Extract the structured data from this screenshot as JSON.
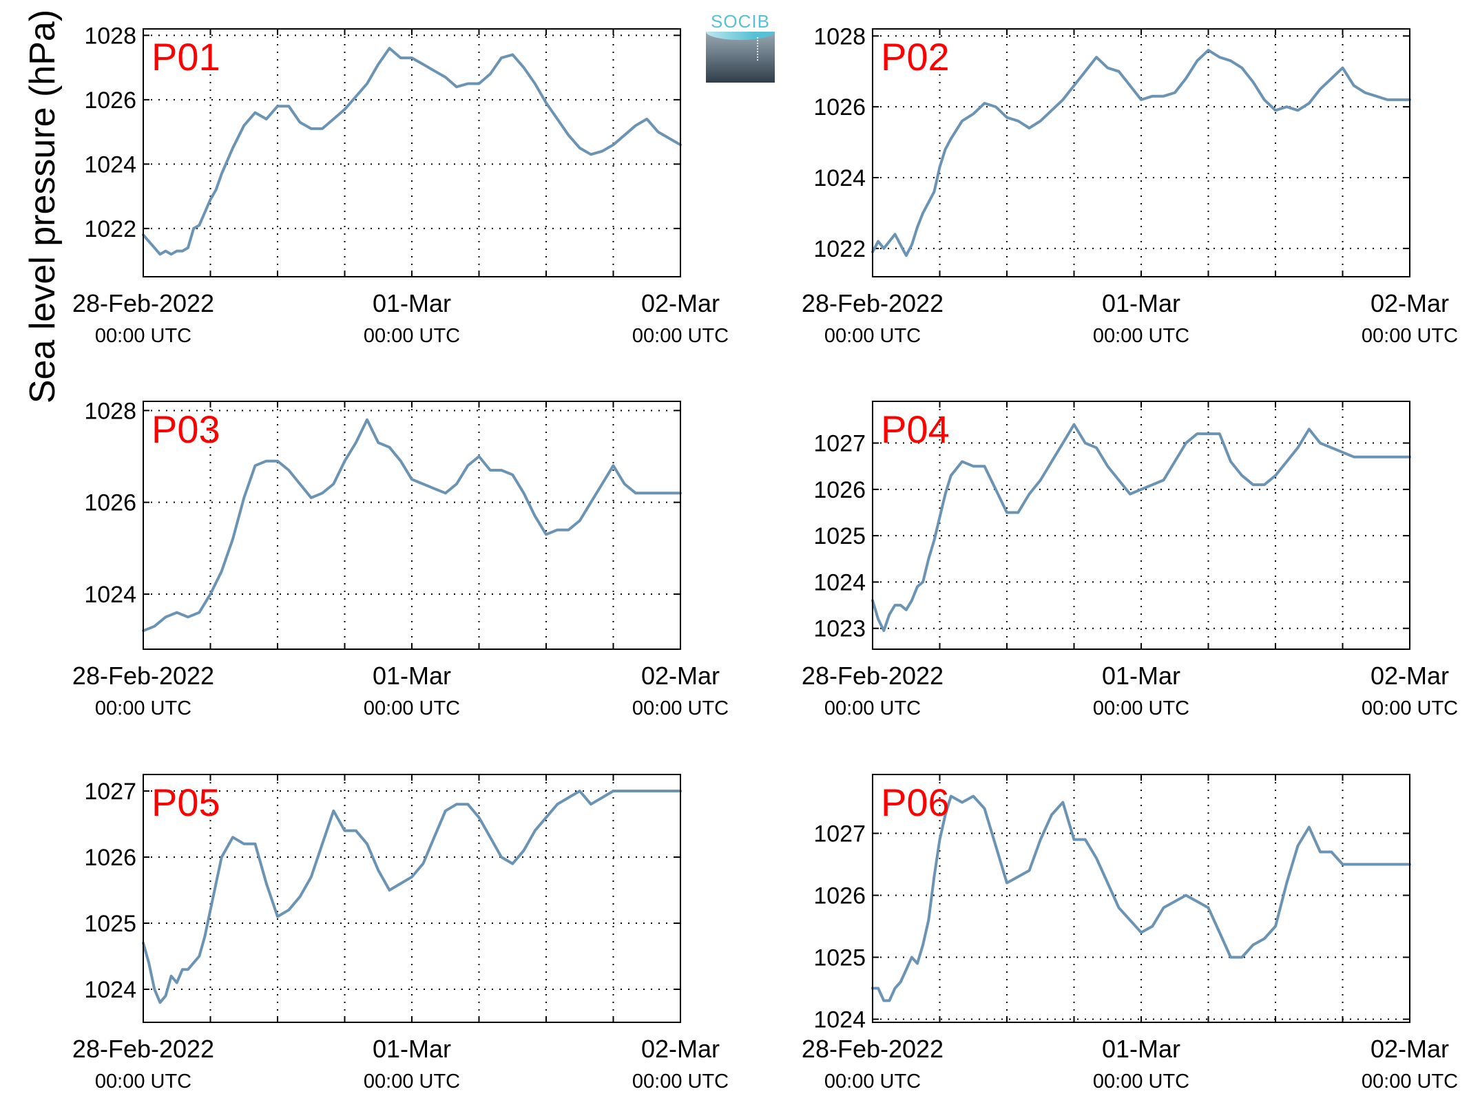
{
  "logo": {
    "text": "SOCIB"
  },
  "figure": {
    "ylabel": "Sea level pressure (hPa)"
  },
  "chart_data": [
    {
      "type": "line",
      "title": "P01",
      "color": "#6b93b3",
      "xlim": [
        "28-Feb-2022 00:00",
        "02-Mar-2022 00:00"
      ],
      "xticks": [
        {
          "label": "28-Feb-2022",
          "sub": "00:00 UTC",
          "h": 0
        },
        {
          "label": "01-Mar",
          "sub": "00:00 UTC",
          "h": 24
        },
        {
          "label": "02-Mar",
          "sub": "00:00 UTC",
          "h": 48
        }
      ],
      "ylim": [
        1020.5,
        1028.2
      ],
      "yticks": [
        1022,
        1024,
        1026,
        1028
      ],
      "x_hours": [
        0,
        0.5,
        1,
        1.5,
        2,
        2.5,
        3,
        3.5,
        4,
        4.5,
        5,
        5.5,
        6,
        6.5,
        7,
        8,
        9,
        10,
        11,
        12,
        13,
        14,
        15,
        16,
        17,
        18,
        19,
        20,
        21,
        22,
        23,
        24,
        25,
        26,
        27,
        28,
        29,
        30,
        31,
        32,
        33,
        34,
        35,
        36,
        37,
        38,
        39,
        40,
        41,
        42,
        43,
        44,
        45,
        46,
        47,
        48
      ],
      "y": [
        1021.8,
        1021.6,
        1021.4,
        1021.2,
        1021.3,
        1021.2,
        1021.3,
        1021.3,
        1021.4,
        1022.0,
        1022.1,
        1022.5,
        1022.9,
        1023.2,
        1023.7,
        1024.5,
        1025.2,
        1025.6,
        1025.4,
        1025.8,
        1025.8,
        1025.3,
        1025.1,
        1025.1,
        1025.4,
        1025.7,
        1026.1,
        1026.5,
        1027.1,
        1027.6,
        1027.3,
        1027.3,
        1027.1,
        1026.9,
        1026.7,
        1026.4,
        1026.5,
        1026.5,
        1026.8,
        1027.3,
        1027.4,
        1027.0,
        1026.5,
        1025.9,
        1025.4,
        1024.9,
        1024.5,
        1024.3,
        1024.4,
        1024.6,
        1024.9,
        1025.2,
        1025.4,
        1025.0,
        1024.8,
        1024.6
      ]
    },
    {
      "type": "line",
      "title": "P02",
      "color": "#6b93b3",
      "xlim": [
        "28-Feb-2022 00:00",
        "02-Mar-2022 00:00"
      ],
      "xticks": [
        {
          "label": "28-Feb-2022",
          "sub": "00:00 UTC",
          "h": 0
        },
        {
          "label": "01-Mar",
          "sub": "00:00 UTC",
          "h": 24
        },
        {
          "label": "02-Mar",
          "sub": "00:00 UTC",
          "h": 48
        }
      ],
      "ylim": [
        1021.2,
        1028.2
      ],
      "yticks": [
        1022,
        1024,
        1026,
        1028
      ],
      "x_hours": [
        0,
        0.5,
        1,
        1.5,
        2,
        2.5,
        3,
        3.5,
        4,
        4.5,
        5,
        5.5,
        6,
        6.5,
        7,
        8,
        9,
        10,
        11,
        12,
        13,
        14,
        15,
        16,
        17,
        18,
        19,
        20,
        21,
        22,
        23,
        24,
        25,
        26,
        27,
        28,
        29,
        30,
        31,
        32,
        33,
        34,
        35,
        36,
        37,
        38,
        39,
        40,
        41,
        42,
        43,
        44,
        45,
        46,
        47,
        48
      ],
      "y": [
        1021.9,
        1022.2,
        1022.0,
        1022.2,
        1022.4,
        1022.1,
        1021.8,
        1022.1,
        1022.6,
        1023.0,
        1023.3,
        1023.6,
        1024.3,
        1024.8,
        1025.1,
        1025.6,
        1025.8,
        1026.1,
        1026.0,
        1025.7,
        1025.6,
        1025.4,
        1025.6,
        1025.9,
        1026.2,
        1026.6,
        1027.0,
        1027.4,
        1027.1,
        1027.0,
        1026.6,
        1026.2,
        1026.3,
        1026.3,
        1026.4,
        1026.8,
        1027.3,
        1027.6,
        1027.4,
        1027.3,
        1027.1,
        1026.7,
        1026.2,
        1025.9,
        1026.0,
        1025.9,
        1026.1,
        1026.5,
        1026.8,
        1027.1,
        1026.6,
        1026.4,
        1026.3,
        1026.2,
        1026.2,
        1026.2
      ]
    },
    {
      "type": "line",
      "title": "P03",
      "color": "#6b93b3",
      "xlim": [
        "28-Feb-2022 00:00",
        "02-Mar-2022 00:00"
      ],
      "xticks": [
        {
          "label": "28-Feb-2022",
          "sub": "00:00 UTC",
          "h": 0
        },
        {
          "label": "01-Mar",
          "sub": "00:00 UTC",
          "h": 24
        },
        {
          "label": "02-Mar",
          "sub": "00:00 UTC",
          "h": 48
        }
      ],
      "ylim": [
        1022.8,
        1028.2
      ],
      "yticks": [
        1024,
        1026,
        1028
      ],
      "x_hours": [
        0,
        1,
        2,
        3,
        4,
        5,
        6,
        7,
        8,
        9,
        10,
        11,
        12,
        13,
        14,
        15,
        16,
        17,
        18,
        19,
        20,
        21,
        22,
        23,
        24,
        25,
        26,
        27,
        28,
        29,
        30,
        31,
        32,
        33,
        34,
        35,
        36,
        37,
        38,
        39,
        40,
        41,
        42,
        43,
        44,
        45,
        46,
        47,
        48
      ],
      "y": [
        1023.2,
        1023.3,
        1023.5,
        1023.6,
        1023.5,
        1023.6,
        1024.0,
        1024.5,
        1025.2,
        1026.1,
        1026.8,
        1026.9,
        1026.9,
        1026.7,
        1026.4,
        1026.1,
        1026.2,
        1026.4,
        1026.9,
        1027.3,
        1027.8,
        1027.3,
        1027.2,
        1026.9,
        1026.5,
        1026.4,
        1026.3,
        1026.2,
        1026.4,
        1026.8,
        1027.0,
        1026.7,
        1026.7,
        1026.6,
        1026.2,
        1025.7,
        1025.3,
        1025.4,
        1025.4,
        1025.6,
        1026.0,
        1026.4,
        1026.8,
        1026.4,
        1026.2,
        1026.2,
        1026.2,
        1026.2,
        1026.2
      ]
    },
    {
      "type": "line",
      "title": "P04",
      "color": "#6b93b3",
      "xlim": [
        "28-Feb-2022 00:00",
        "02-Mar-2022 00:00"
      ],
      "xticks": [
        {
          "label": "28-Feb-2022",
          "sub": "00:00 UTC",
          "h": 0
        },
        {
          "label": "01-Mar",
          "sub": "00:00 UTC",
          "h": 24
        },
        {
          "label": "02-Mar",
          "sub": "00:00 UTC",
          "h": 48
        }
      ],
      "ylim": [
        1022.55,
        1027.9
      ],
      "yticks": [
        1023,
        1024,
        1025,
        1026,
        1027
      ],
      "x_hours": [
        0,
        0.5,
        1,
        1.5,
        2,
        2.5,
        3,
        3.5,
        4,
        4.5,
        5,
        5.5,
        6,
        6.5,
        7,
        8,
        9,
        10,
        11,
        12,
        13,
        14,
        15,
        16,
        17,
        18,
        19,
        20,
        21,
        22,
        23,
        24,
        25,
        26,
        27,
        28,
        29,
        30,
        31,
        32,
        33,
        34,
        35,
        36,
        37,
        38,
        39,
        40,
        41,
        42,
        43,
        44,
        45,
        46,
        47,
        48
      ],
      "y": [
        1023.6,
        1023.2,
        1022.95,
        1023.3,
        1023.5,
        1023.5,
        1023.4,
        1023.6,
        1023.9,
        1024.0,
        1024.5,
        1024.9,
        1025.4,
        1025.9,
        1026.3,
        1026.6,
        1026.5,
        1026.5,
        1026.0,
        1025.5,
        1025.5,
        1025.9,
        1026.2,
        1026.6,
        1027.0,
        1027.4,
        1027.0,
        1026.9,
        1026.5,
        1026.2,
        1025.9,
        1026.0,
        1026.1,
        1026.2,
        1026.6,
        1027.0,
        1027.2,
        1027.2,
        1027.2,
        1026.6,
        1026.3,
        1026.1,
        1026.1,
        1026.3,
        1026.6,
        1026.9,
        1027.3,
        1027.0,
        1026.9,
        1026.8,
        1026.7,
        1026.7,
        1026.7,
        1026.7,
        1026.7,
        1026.7
      ]
    },
    {
      "type": "line",
      "title": "P05",
      "color": "#6b93b3",
      "xlim": [
        "28-Feb-2022 00:00",
        "02-Mar-2022 00:00"
      ],
      "xticks": [
        {
          "label": "28-Feb-2022",
          "sub": "00:00 UTC",
          "h": 0
        },
        {
          "label": "01-Mar",
          "sub": "00:00 UTC",
          "h": 24
        },
        {
          "label": "02-Mar",
          "sub": "00:00 UTC",
          "h": 48
        }
      ],
      "ylim": [
        1023.5,
        1027.25
      ],
      "yticks": [
        1024,
        1025,
        1026,
        1027
      ],
      "x_hours": [
        0,
        0.5,
        1,
        1.5,
        2,
        2.5,
        3,
        3.5,
        4,
        4.5,
        5,
        5.5,
        6,
        6.5,
        7,
        8,
        9,
        10,
        11,
        12,
        13,
        14,
        15,
        16,
        17,
        18,
        19,
        20,
        21,
        22,
        23,
        24,
        25,
        26,
        27,
        28,
        29,
        30,
        31,
        32,
        33,
        34,
        35,
        36,
        37,
        38,
        39,
        40,
        41,
        42,
        43,
        44,
        45,
        46,
        47,
        48
      ],
      "y": [
        1024.7,
        1024.4,
        1024.0,
        1023.8,
        1023.9,
        1024.2,
        1024.1,
        1024.3,
        1024.3,
        1024.4,
        1024.5,
        1024.8,
        1025.2,
        1025.6,
        1026.0,
        1026.3,
        1026.2,
        1026.2,
        1025.6,
        1025.1,
        1025.2,
        1025.4,
        1025.7,
        1026.2,
        1026.7,
        1026.4,
        1026.4,
        1026.2,
        1025.8,
        1025.5,
        1025.6,
        1025.7,
        1025.9,
        1026.3,
        1026.7,
        1026.8,
        1026.8,
        1026.6,
        1026.3,
        1026.0,
        1025.9,
        1026.1,
        1026.4,
        1026.6,
        1026.8,
        1026.9,
        1027.0,
        1026.8,
        1026.9,
        1027.0,
        1027.0,
        1027.0,
        1027.0,
        1027.0,
        1027.0,
        1027.0
      ]
    },
    {
      "type": "line",
      "title": "P06",
      "color": "#6b93b3",
      "xlim": [
        "28-Feb-2022 00:00",
        "02-Mar-2022 00:00"
      ],
      "xticks": [
        {
          "label": "28-Feb-2022",
          "sub": "00:00 UTC",
          "h": 0
        },
        {
          "label": "01-Mar",
          "sub": "00:00 UTC",
          "h": 24
        },
        {
          "label": "02-Mar",
          "sub": "00:00 UTC",
          "h": 48
        }
      ],
      "ylim": [
        1023.95,
        1027.95
      ],
      "yticks": [
        1024,
        1025,
        1026,
        1027
      ],
      "x_hours": [
        0,
        0.5,
        1,
        1.5,
        2,
        2.5,
        3,
        3.5,
        4,
        4.5,
        5,
        5.5,
        6,
        6.5,
        7,
        8,
        9,
        10,
        11,
        12,
        13,
        14,
        15,
        16,
        17,
        18,
        19,
        20,
        21,
        22,
        23,
        24,
        25,
        26,
        27,
        28,
        29,
        30,
        31,
        32,
        33,
        34,
        35,
        36,
        37,
        38,
        39,
        40,
        41,
        42,
        43,
        44,
        45,
        46,
        47,
        48
      ],
      "y": [
        1024.5,
        1024.5,
        1024.3,
        1024.3,
        1024.5,
        1024.6,
        1024.8,
        1025.0,
        1024.9,
        1025.2,
        1025.6,
        1026.3,
        1026.9,
        1027.3,
        1027.6,
        1027.5,
        1027.6,
        1027.4,
        1026.8,
        1026.2,
        1026.3,
        1026.4,
        1026.9,
        1027.3,
        1027.5,
        1026.9,
        1026.9,
        1026.6,
        1026.2,
        1025.8,
        1025.6,
        1025.4,
        1025.5,
        1025.8,
        1025.9,
        1026.0,
        1025.9,
        1025.8,
        1025.4,
        1025.0,
        1025.0,
        1025.2,
        1025.3,
        1025.5,
        1026.2,
        1026.8,
        1027.1,
        1026.7,
        1026.7,
        1026.5,
        1026.5,
        1026.5,
        1026.5,
        1026.5,
        1026.5,
        1026.5
      ]
    }
  ]
}
